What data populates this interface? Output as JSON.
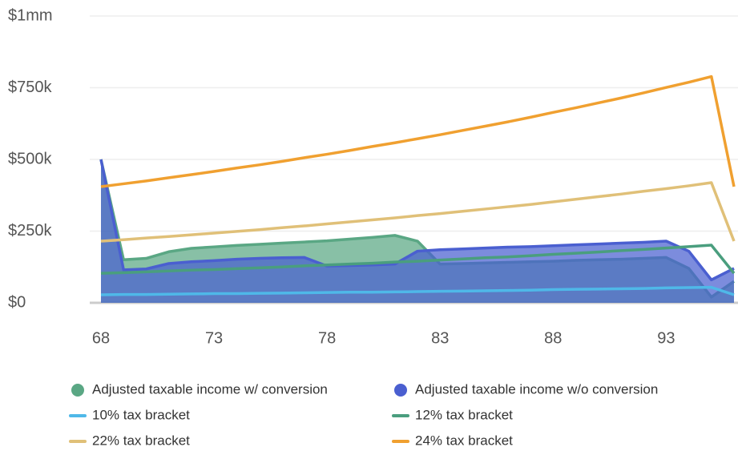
{
  "chart_data": {
    "type": "line",
    "x": [
      68,
      69,
      70,
      71,
      72,
      73,
      74,
      75,
      76,
      77,
      78,
      79,
      80,
      81,
      82,
      83,
      84,
      85,
      86,
      87,
      88,
      89,
      90,
      91,
      92,
      93,
      94,
      95,
      96
    ],
    "xlim": [
      68,
      96
    ],
    "xticks": [
      68,
      73,
      78,
      83,
      88,
      93
    ],
    "ylim": [
      0,
      1000000
    ],
    "yticks": [
      {
        "value": 0,
        "label": "$0"
      },
      {
        "value": 250000,
        "label": "$250k"
      },
      {
        "value": 500000,
        "label": "$500k"
      },
      {
        "value": 750000,
        "label": "$750k"
      },
      {
        "value": 1000000,
        "label": "$1mm"
      }
    ],
    "grid": true,
    "series": [
      {
        "name": "Adjusted taxable income w/ conversion",
        "color": "#5aa784",
        "fill": true,
        "values": [
          500000,
          150000,
          155000,
          178000,
          190000,
          195000,
          200000,
          204000,
          208000,
          212000,
          216000,
          222000,
          228000,
          235000,
          215000,
          135000,
          137000,
          139000,
          141000,
          143000,
          145000,
          148000,
          150000,
          152000,
          155000,
          158000,
          120000,
          20000,
          75000
        ]
      },
      {
        "name": "Adjusted taxable income w/o conversion",
        "color": "#4a5fd0",
        "fill": true,
        "values": [
          500000,
          115000,
          118000,
          137000,
          143000,
          147000,
          152000,
          155000,
          157000,
          158000,
          128000,
          130000,
          132000,
          135000,
          180000,
          185000,
          188000,
          191000,
          194000,
          196000,
          199000,
          202000,
          205000,
          208000,
          211000,
          215000,
          180000,
          80000,
          120000
        ]
      },
      {
        "name": "10% tax bracket",
        "color": "#4fb8e8",
        "fill": false,
        "values": [
          28000,
          29000,
          29000,
          30000,
          31000,
          32000,
          32000,
          33000,
          34000,
          35000,
          36000,
          37000,
          37000,
          38000,
          39000,
          40000,
          41000,
          42000,
          43000,
          44000,
          46000,
          47000,
          48000,
          49000,
          50000,
          52000,
          53000,
          54000,
          28000
        ]
      },
      {
        "name": "12% tax bracket",
        "color": "#4a9e7e",
        "fill": false,
        "values": [
          103000,
          105000,
          108000,
          111000,
          114000,
          116000,
          119000,
          122000,
          125000,
          129000,
          132000,
          135000,
          138000,
          142000,
          145000,
          149000,
          153000,
          157000,
          160000,
          164000,
          169000,
          173000,
          177000,
          182000,
          186000,
          191000,
          196000,
          201000,
          103000
        ]
      },
      {
        "name": "22% tax bracket",
        "color": "#e0c078",
        "fill": false,
        "values": [
          215000,
          220000,
          226000,
          231000,
          237000,
          243000,
          249000,
          255000,
          262000,
          268000,
          275000,
          282000,
          289000,
          296000,
          304000,
          311000,
          319000,
          327000,
          335000,
          343000,
          352000,
          361000,
          370000,
          379000,
          389000,
          398000,
          408000,
          419000,
          215000
        ]
      },
      {
        "name": "24% tax bracket",
        "color": "#f0a030",
        "fill": false,
        "values": [
          405000,
          415000,
          425000,
          436000,
          447000,
          458000,
          470000,
          481000,
          493000,
          506000,
          518000,
          531000,
          545000,
          558000,
          572000,
          586000,
          601000,
          616000,
          631000,
          647000,
          664000,
          680000,
          697000,
          714000,
          732000,
          751000,
          769000,
          789000,
          405000
        ]
      }
    ]
  }
}
